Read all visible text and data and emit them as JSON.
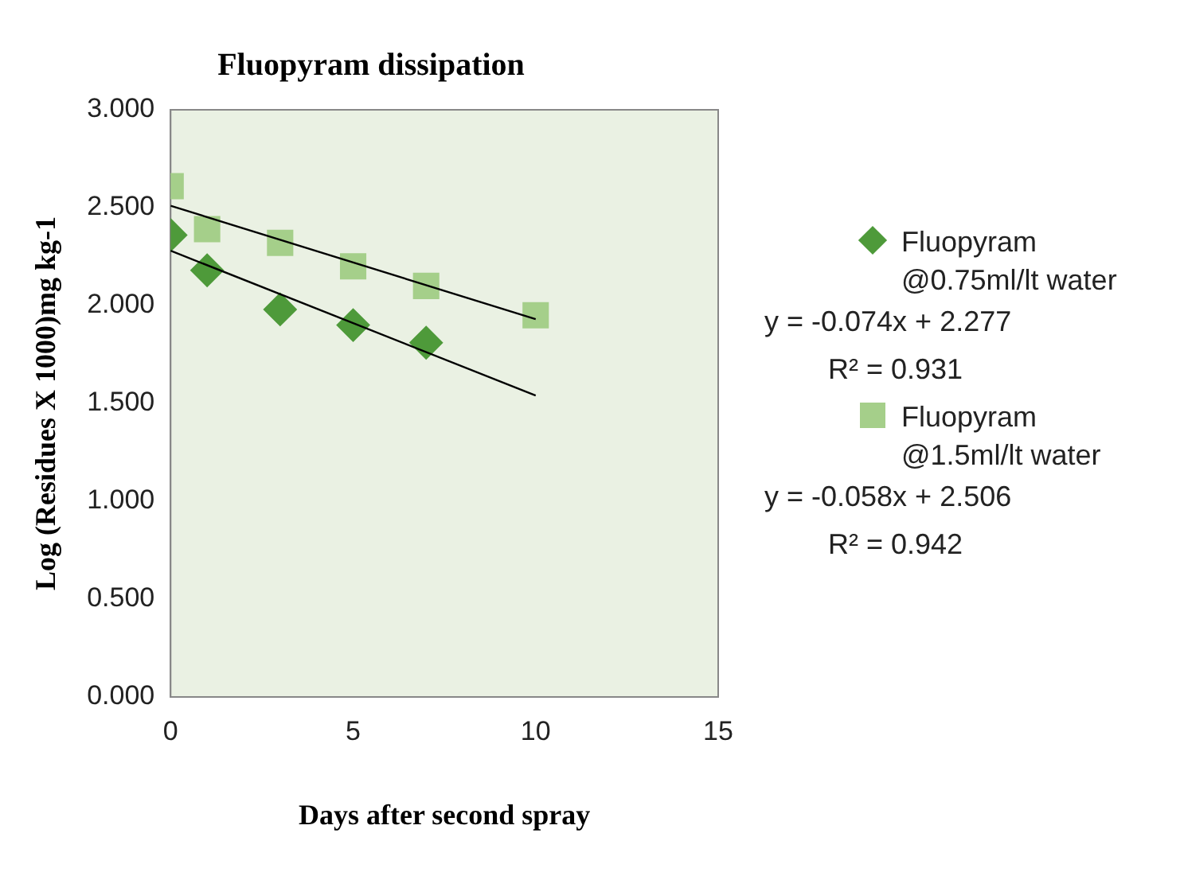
{
  "chart_data": {
    "type": "scatter",
    "title": "Fluopyram dissipation",
    "xlabel": "Days after second spray",
    "ylabel": "Log (Residues X 1000)mg kg-1",
    "xlim": [
      0,
      15
    ],
    "xticks": [
      0,
      5,
      10,
      15
    ],
    "ylim": [
      0,
      3
    ],
    "yticks": [
      {
        "value": 0,
        "label": "0.000"
      },
      {
        "value": 0.5,
        "label": "0.500"
      },
      {
        "value": 1,
        "label": "1.000"
      },
      {
        "value": 1.5,
        "label": "1.500"
      },
      {
        "value": 2,
        "label": "2.000"
      },
      {
        "value": 2.5,
        "label": "2.500"
      },
      {
        "value": 3,
        "label": "3.000"
      }
    ],
    "grid": false,
    "legend": "right",
    "series": [
      {
        "name": "Fluopyram @0.75ml/lt water",
        "color": "#4e9a3a",
        "marker": "diamond",
        "x": [
          0,
          1,
          3,
          5,
          7
        ],
        "values": [
          2.36,
          2.18,
          1.98,
          1.9,
          1.81
        ]
      },
      {
        "type": "line",
        "color": "#000000",
        "marker": "none",
        "x": [
          0,
          10
        ],
        "values": [
          2.28,
          1.54
        ]
      },
      {
        "name": "Fluopyram @1.5ml/lt water",
        "color": "#a5cf8a",
        "marker": "square",
        "x": [
          0,
          1,
          3,
          5,
          7,
          10
        ],
        "values": [
          2.61,
          2.39,
          2.32,
          2.2,
          2.1,
          1.95
        ]
      },
      {
        "type": "line",
        "color": "#000000",
        "marker": "none",
        "x": [
          0,
          10
        ],
        "values": [
          2.51,
          1.93
        ]
      }
    ],
    "annotations": [
      "y = -0.074x + 2.277",
      "R² = 0.931",
      "y = -0.058x + 2.506",
      "R² = 0.942"
    ]
  }
}
